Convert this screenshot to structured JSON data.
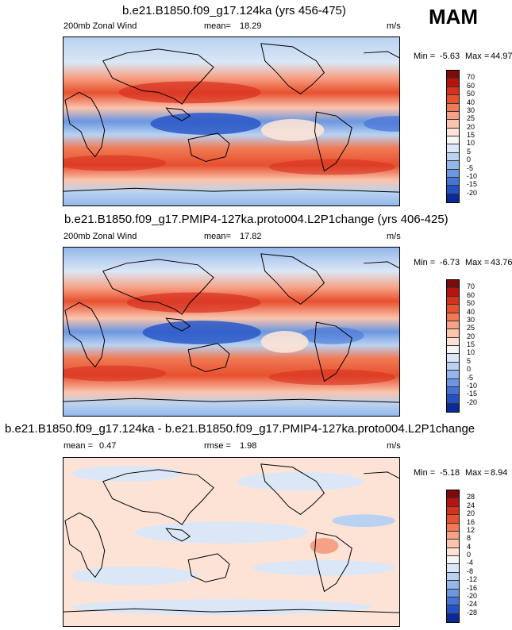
{
  "season": "MAM",
  "panels": [
    {
      "title": "b.e21.B1850.f09_g17.124ka (yrs 456-475)",
      "left_label": "200mb Zonal Wind",
      "mean_label": "mean=",
      "mean_value": "18.29",
      "units": "m/s",
      "min_label": "Min =",
      "min_value": "-5.63",
      "max_label": "Max =",
      "max_value": "44.97",
      "colorbar_labels": [
        "70",
        "60",
        "50",
        "40",
        "30",
        "25",
        "20",
        "15",
        "10",
        "5",
        "0",
        "-5",
        "-10",
        "-15",
        "-20"
      ],
      "colorbar_colors": [
        "#7f0a0a",
        "#b5150e",
        "#d7301f",
        "#e8502f",
        "#f07a55",
        "#f6a185",
        "#fac4ad",
        "#fde3d6",
        "#f5f5f5",
        "#dbe7f6",
        "#b9d2f1",
        "#94b7ea",
        "#6b97e1",
        "#4674d6",
        "#2452c5",
        "#0a2a97"
      ]
    },
    {
      "title": "b.e21.B1850.f09_g17.PMIP4-127ka.proto004.L2P1change (yrs 406-425)",
      "left_label": "200mb Zonal Wind",
      "mean_label": "mean=",
      "mean_value": "17.82",
      "units": "m/s",
      "min_label": "Min =",
      "min_value": "-6.73",
      "max_label": "Max =",
      "max_value": "43.76",
      "colorbar_labels": [
        "70",
        "60",
        "50",
        "40",
        "30",
        "25",
        "20",
        "15",
        "10",
        "5",
        "0",
        "-5",
        "-10",
        "-15",
        "-20"
      ],
      "colorbar_colors": [
        "#7f0a0a",
        "#b5150e",
        "#d7301f",
        "#e8502f",
        "#f07a55",
        "#f6a185",
        "#fac4ad",
        "#fde3d6",
        "#f5f5f5",
        "#dbe7f6",
        "#b9d2f1",
        "#94b7ea",
        "#6b97e1",
        "#4674d6",
        "#2452c5",
        "#0a2a97"
      ]
    },
    {
      "title": "b.e21.B1850.f09_g17.124ka - b.e21.B1850.f09_g17.PMIP4-127ka.proto004.L2P1change",
      "left_label": "mean =",
      "left_value": "0.47",
      "mid_label": "rmse =",
      "mid_value": "1.98",
      "units": "m/s",
      "min_label": "Min =",
      "min_value": "-5.18",
      "max_label": "Max =",
      "max_value": "8.94",
      "colorbar_labels": [
        "28",
        "24",
        "20",
        "16",
        "12",
        "8",
        "4",
        "0",
        "-4",
        "-8",
        "-12",
        "-16",
        "-20",
        "-24",
        "-28"
      ],
      "colorbar_colors": [
        "#7f0a0a",
        "#b5150e",
        "#d7301f",
        "#e8502f",
        "#f07a55",
        "#f6a185",
        "#fac4ad",
        "#fde3d6",
        "#f5f5f5",
        "#dbe7f6",
        "#b9d2f1",
        "#94b7ea",
        "#6b97e1",
        "#4674d6",
        "#2452c5",
        "#0a2a97"
      ]
    }
  ]
}
